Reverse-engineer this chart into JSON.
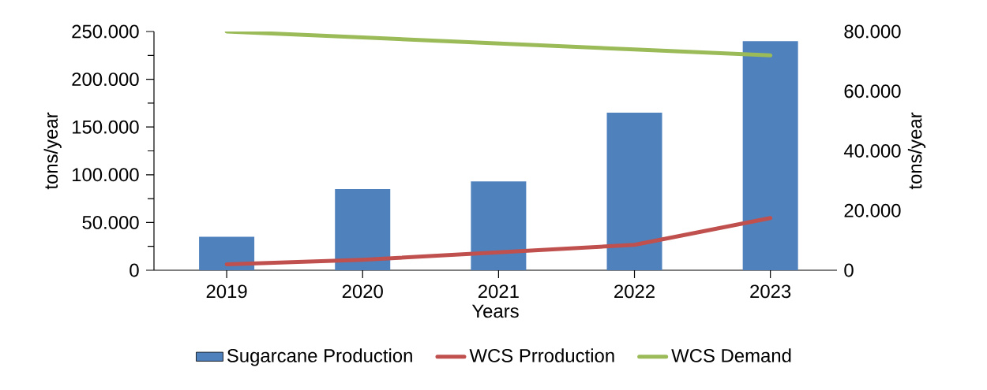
{
  "chart_data": {
    "type": "bar",
    "xlabel": "Years",
    "ylabel": "tons/year",
    "y2label": "tons/year",
    "categories": [
      "2019",
      "2020",
      "2021",
      "2022",
      "2023"
    ],
    "series": [
      {
        "name": "Sugarcane Production",
        "color": "#4f81bd",
        "values": [
          35000,
          85000,
          93000,
          165000,
          240000
        ]
      },
      {
        "name": "WCS Prroduction",
        "type": "line",
        "axis": "y2",
        "color": "#c0504d",
        "values": [
          2000,
          3500,
          6000,
          8500,
          17500
        ]
      },
      {
        "name": "WCS Demand",
        "type": "line",
        "axis": "y2",
        "color": "#9bbb59",
        "values": [
          80000,
          78000,
          76000,
          74000,
          72000
        ]
      }
    ],
    "ylim": [
      0,
      250000
    ],
    "yticks": [
      0,
      {
        "value": 50000,
        "label": "50.000"
      },
      {
        "value": 100000,
        "label": "100.000"
      },
      {
        "value": 150000,
        "label": "150.000"
      },
      {
        "value": 200000,
        "label": "200.000"
      },
      {
        "value": 250000,
        "label": "250.000"
      }
    ],
    "y2lim": [
      0,
      80000
    ],
    "y2ticks": [
      0,
      {
        "value": 20000,
        "label": "20.000"
      },
      {
        "value": 40000,
        "label": "40.000"
      },
      {
        "value": 60000,
        "label": "60.000"
      },
      {
        "value": 80000,
        "label": "80.000"
      }
    ],
    "legend": "bottom"
  }
}
